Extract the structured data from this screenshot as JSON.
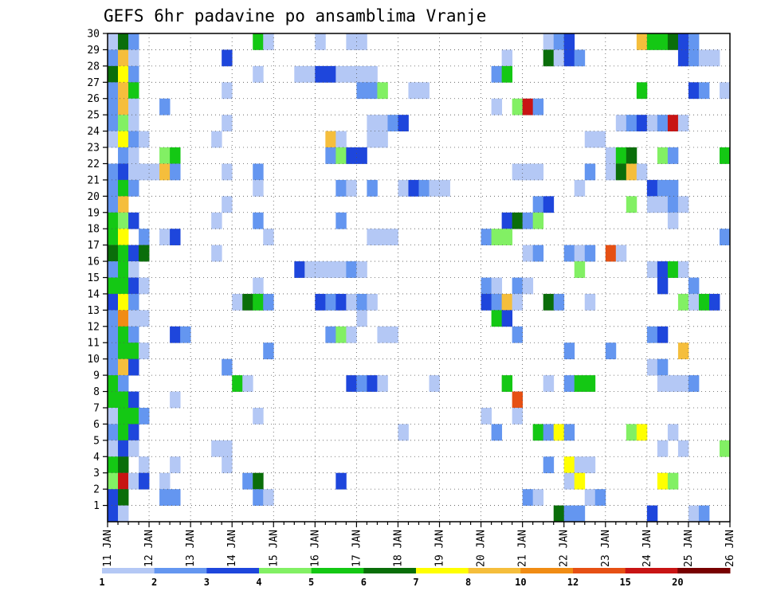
{
  "chart_data": {
    "type": "heatmap",
    "title": "GEFS 6hr padavine po ansamblima Vranje",
    "xlabel": "",
    "ylabel": "",
    "x_tick_labels": [
      "11 JAN",
      "12 JAN",
      "13 JAN",
      "14 JAN",
      "15 JAN",
      "16 JAN",
      "17 JAN",
      "18 JAN",
      "19 JAN",
      "20 JAN",
      "21 JAN",
      "22 JAN",
      "23 JAN",
      "24 JAN",
      "25 JAN",
      "26 JAN"
    ],
    "y_tick_labels": [
      "1",
      "2",
      "3",
      "4",
      "5",
      "6",
      "7",
      "8",
      "9",
      "10",
      "11",
      "12",
      "13",
      "14",
      "15",
      "16",
      "17",
      "18",
      "19",
      "20",
      "21",
      "22",
      "23",
      "24",
      "25",
      "26",
      "27",
      "28",
      "29",
      "30"
    ],
    "x_unit": "6h step from 11 JAN 00Z",
    "xlim": [
      0,
      60
    ],
    "ylim": [
      0,
      30
    ],
    "grid": true,
    "colorbar": {
      "labels": [
        "1",
        "2",
        "3",
        "4",
        "5",
        "6",
        "7",
        "8",
        "10",
        "12",
        "15",
        "20"
      ],
      "colors": [
        "#b4c8f5",
        "#6496f0",
        "#1e46dc",
        "#82f064",
        "#14c814",
        "#0a6e0a",
        "#ffff00",
        "#f5be3c",
        "#f08c14",
        "#e65014",
        "#c81414",
        "#780000"
      ]
    },
    "cells_legend": "each row = [member, step, class]; class 1..12 indexes colorbar.colors",
    "cells": [
      [
        30,
        0,
        1
      ],
      [
        30,
        1,
        6
      ],
      [
        30,
        2,
        2
      ],
      [
        30,
        14,
        5
      ],
      [
        30,
        15,
        1
      ],
      [
        30,
        20,
        1
      ],
      [
        30,
        23,
        1
      ],
      [
        30,
        24,
        1
      ],
      [
        30,
        42,
        1
      ],
      [
        30,
        43,
        2
      ],
      [
        30,
        44,
        3
      ],
      [
        30,
        51,
        8
      ],
      [
        30,
        52,
        5
      ],
      [
        30,
        53,
        5
      ],
      [
        30,
        54,
        6
      ],
      [
        30,
        55,
        3
      ],
      [
        30,
        56,
        2
      ],
      [
        29,
        0,
        2
      ],
      [
        29,
        1,
        8
      ],
      [
        29,
        2,
        1
      ],
      [
        29,
        11,
        3
      ],
      [
        29,
        38,
        1
      ],
      [
        29,
        42,
        6
      ],
      [
        29,
        43,
        1
      ],
      [
        29,
        44,
        3
      ],
      [
        29,
        45,
        2
      ],
      [
        29,
        55,
        3
      ],
      [
        29,
        56,
        2
      ],
      [
        29,
        57,
        1
      ],
      [
        29,
        58,
        1
      ],
      [
        28,
        0,
        6
      ],
      [
        28,
        1,
        7
      ],
      [
        28,
        2,
        2
      ],
      [
        28,
        14,
        1
      ],
      [
        28,
        18,
        1
      ],
      [
        28,
        19,
        1
      ],
      [
        28,
        20,
        3
      ],
      [
        28,
        21,
        3
      ],
      [
        28,
        22,
        1
      ],
      [
        28,
        23,
        1
      ],
      [
        28,
        24,
        1
      ],
      [
        28,
        25,
        1
      ],
      [
        28,
        37,
        2
      ],
      [
        28,
        38,
        5
      ],
      [
        27,
        0,
        2
      ],
      [
        27,
        1,
        8
      ],
      [
        27,
        2,
        5
      ],
      [
        27,
        11,
        1
      ],
      [
        27,
        24,
        2
      ],
      [
        27,
        25,
        2
      ],
      [
        27,
        26,
        4
      ],
      [
        27,
        29,
        1
      ],
      [
        27,
        30,
        1
      ],
      [
        27,
        51,
        5
      ],
      [
        27,
        56,
        3
      ],
      [
        27,
        57,
        2
      ],
      [
        27,
        59,
        1
      ],
      [
        26,
        0,
        2
      ],
      [
        26,
        1,
        8
      ],
      [
        26,
        2,
        1
      ],
      [
        26,
        5,
        2
      ],
      [
        26,
        37,
        1
      ],
      [
        26,
        39,
        4
      ],
      [
        26,
        40,
        11
      ],
      [
        26,
        41,
        2
      ],
      [
        25,
        0,
        2
      ],
      [
        25,
        1,
        4
      ],
      [
        25,
        2,
        1
      ],
      [
        25,
        11,
        1
      ],
      [
        25,
        25,
        1
      ],
      [
        25,
        26,
        1
      ],
      [
        25,
        27,
        2
      ],
      [
        25,
        28,
        3
      ],
      [
        25,
        49,
        1
      ],
      [
        25,
        50,
        2
      ],
      [
        25,
        51,
        3
      ],
      [
        25,
        52,
        1
      ],
      [
        25,
        53,
        2
      ],
      [
        25,
        54,
        11
      ],
      [
        25,
        55,
        1
      ],
      [
        24,
        0,
        1
      ],
      [
        24,
        1,
        7
      ],
      [
        24,
        2,
        2
      ],
      [
        24,
        3,
        1
      ],
      [
        24,
        10,
        1
      ],
      [
        24,
        21,
        8
      ],
      [
        24,
        22,
        1
      ],
      [
        24,
        25,
        1
      ],
      [
        24,
        26,
        1
      ],
      [
        24,
        46,
        1
      ],
      [
        24,
        47,
        1
      ],
      [
        23,
        1,
        2
      ],
      [
        23,
        2,
        1
      ],
      [
        23,
        5,
        4
      ],
      [
        23,
        6,
        5
      ],
      [
        23,
        21,
        2
      ],
      [
        23,
        22,
        4
      ],
      [
        23,
        23,
        3
      ],
      [
        23,
        24,
        3
      ],
      [
        23,
        48,
        1
      ],
      [
        23,
        49,
        5
      ],
      [
        23,
        50,
        6
      ],
      [
        23,
        53,
        4
      ],
      [
        23,
        54,
        2
      ],
      [
        23,
        59,
        5
      ],
      [
        22,
        0,
        2
      ],
      [
        22,
        1,
        3
      ],
      [
        22,
        2,
        1
      ],
      [
        22,
        3,
        1
      ],
      [
        22,
        4,
        1
      ],
      [
        22,
        5,
        8
      ],
      [
        22,
        6,
        2
      ],
      [
        22,
        11,
        1
      ],
      [
        22,
        14,
        2
      ],
      [
        22,
        39,
        1
      ],
      [
        22,
        40,
        1
      ],
      [
        22,
        41,
        1
      ],
      [
        22,
        46,
        2
      ],
      [
        22,
        48,
        1
      ],
      [
        22,
        49,
        6
      ],
      [
        22,
        50,
        8
      ],
      [
        22,
        51,
        1
      ],
      [
        21,
        0,
        2
      ],
      [
        21,
        1,
        5
      ],
      [
        21,
        2,
        2
      ],
      [
        21,
        14,
        1
      ],
      [
        21,
        22,
        2
      ],
      [
        21,
        23,
        1
      ],
      [
        21,
        25,
        2
      ],
      [
        21,
        28,
        1
      ],
      [
        21,
        29,
        3
      ],
      [
        21,
        30,
        2
      ],
      [
        21,
        31,
        1
      ],
      [
        21,
        32,
        1
      ],
      [
        21,
        45,
        1
      ],
      [
        21,
        52,
        3
      ],
      [
        21,
        53,
        2
      ],
      [
        21,
        54,
        2
      ],
      [
        20,
        0,
        2
      ],
      [
        20,
        1,
        8
      ],
      [
        20,
        11,
        1
      ],
      [
        20,
        41,
        2
      ],
      [
        20,
        42,
        3
      ],
      [
        20,
        50,
        4
      ],
      [
        20,
        52,
        1
      ],
      [
        20,
        53,
        1
      ],
      [
        20,
        54,
        2
      ],
      [
        20,
        55,
        1
      ],
      [
        19,
        0,
        5
      ],
      [
        19,
        1,
        4
      ],
      [
        19,
        2,
        3
      ],
      [
        19,
        10,
        1
      ],
      [
        19,
        14,
        2
      ],
      [
        19,
        22,
        2
      ],
      [
        19,
        38,
        3
      ],
      [
        19,
        39,
        6
      ],
      [
        19,
        40,
        2
      ],
      [
        19,
        41,
        4
      ],
      [
        19,
        54,
        1
      ],
      [
        18,
        0,
        5
      ],
      [
        18,
        1,
        7
      ],
      [
        18,
        3,
        2
      ],
      [
        18,
        5,
        1
      ],
      [
        18,
        6,
        3
      ],
      [
        18,
        15,
        1
      ],
      [
        18,
        25,
        1
      ],
      [
        18,
        26,
        1
      ],
      [
        18,
        27,
        1
      ],
      [
        18,
        36,
        2
      ],
      [
        18,
        37,
        4
      ],
      [
        18,
        38,
        4
      ],
      [
        18,
        59,
        2
      ],
      [
        17,
        0,
        6
      ],
      [
        17,
        1,
        5
      ],
      [
        17,
        2,
        3
      ],
      [
        17,
        3,
        6
      ],
      [
        17,
        10,
        1
      ],
      [
        17,
        40,
        1
      ],
      [
        17,
        41,
        2
      ],
      [
        17,
        44,
        2
      ],
      [
        17,
        45,
        1
      ],
      [
        17,
        46,
        2
      ],
      [
        17,
        48,
        10
      ],
      [
        17,
        49,
        1
      ],
      [
        16,
        0,
        2
      ],
      [
        16,
        1,
        5
      ],
      [
        16,
        2,
        1
      ],
      [
        16,
        18,
        3
      ],
      [
        16,
        19,
        1
      ],
      [
        16,
        20,
        1
      ],
      [
        16,
        21,
        1
      ],
      [
        16,
        22,
        1
      ],
      [
        16,
        23,
        2
      ],
      [
        16,
        24,
        1
      ],
      [
        16,
        45,
        4
      ],
      [
        16,
        52,
        1
      ],
      [
        16,
        53,
        3
      ],
      [
        16,
        54,
        5
      ],
      [
        16,
        55,
        1
      ],
      [
        15,
        0,
        5
      ],
      [
        15,
        1,
        5
      ],
      [
        15,
        2,
        3
      ],
      [
        15,
        3,
        1
      ],
      [
        15,
        14,
        1
      ],
      [
        15,
        36,
        2
      ],
      [
        15,
        37,
        1
      ],
      [
        15,
        39,
        2
      ],
      [
        15,
        40,
        1
      ],
      [
        15,
        53,
        3
      ],
      [
        15,
        56,
        2
      ],
      [
        14,
        0,
        3
      ],
      [
        14,
        1,
        7
      ],
      [
        14,
        2,
        2
      ],
      [
        14,
        12,
        1
      ],
      [
        14,
        13,
        6
      ],
      [
        14,
        14,
        5
      ],
      [
        14,
        15,
        2
      ],
      [
        14,
        20,
        3
      ],
      [
        14,
        21,
        2
      ],
      [
        14,
        22,
        3
      ],
      [
        14,
        23,
        1
      ],
      [
        14,
        24,
        2
      ],
      [
        14,
        25,
        1
      ],
      [
        14,
        36,
        3
      ],
      [
        14,
        37,
        2
      ],
      [
        14,
        38,
        8
      ],
      [
        14,
        39,
        1
      ],
      [
        14,
        42,
        6
      ],
      [
        14,
        43,
        2
      ],
      [
        14,
        46,
        1
      ],
      [
        14,
        55,
        4
      ],
      [
        14,
        56,
        1
      ],
      [
        14,
        57,
        5
      ],
      [
        14,
        58,
        3
      ],
      [
        13,
        0,
        2
      ],
      [
        13,
        1,
        9
      ],
      [
        13,
        2,
        1
      ],
      [
        13,
        3,
        1
      ],
      [
        13,
        24,
        1
      ],
      [
        13,
        37,
        5
      ],
      [
        13,
        38,
        3
      ],
      [
        12,
        0,
        2
      ],
      [
        12,
        1,
        5
      ],
      [
        12,
        2,
        2
      ],
      [
        12,
        6,
        3
      ],
      [
        12,
        7,
        2
      ],
      [
        12,
        21,
        2
      ],
      [
        12,
        22,
        4
      ],
      [
        12,
        23,
        1
      ],
      [
        12,
        26,
        1
      ],
      [
        12,
        27,
        1
      ],
      [
        12,
        39,
        2
      ],
      [
        12,
        52,
        2
      ],
      [
        12,
        53,
        3
      ],
      [
        11,
        0,
        2
      ],
      [
        11,
        1,
        5
      ],
      [
        11,
        2,
        5
      ],
      [
        11,
        3,
        1
      ],
      [
        11,
        15,
        2
      ],
      [
        11,
        44,
        2
      ],
      [
        11,
        48,
        2
      ],
      [
        11,
        55,
        8
      ],
      [
        10,
        0,
        2
      ],
      [
        10,
        1,
        8
      ],
      [
        10,
        2,
        3
      ],
      [
        10,
        11,
        2
      ],
      [
        10,
        52,
        1
      ],
      [
        10,
        53,
        2
      ],
      [
        9,
        0,
        5
      ],
      [
        9,
        1,
        2
      ],
      [
        9,
        12,
        5
      ],
      [
        9,
        13,
        1
      ],
      [
        9,
        23,
        3
      ],
      [
        9,
        24,
        2
      ],
      [
        9,
        25,
        3
      ],
      [
        9,
        26,
        1
      ],
      [
        9,
        31,
        1
      ],
      [
        9,
        38,
        5
      ],
      [
        9,
        42,
        1
      ],
      [
        9,
        44,
        2
      ],
      [
        9,
        45,
        5
      ],
      [
        9,
        46,
        5
      ],
      [
        9,
        53,
        1
      ],
      [
        9,
        54,
        1
      ],
      [
        9,
        55,
        1
      ],
      [
        9,
        56,
        2
      ],
      [
        8,
        0,
        5
      ],
      [
        8,
        1,
        5
      ],
      [
        8,
        2,
        3
      ],
      [
        8,
        6,
        1
      ],
      [
        8,
        39,
        10
      ],
      [
        7,
        0,
        1
      ],
      [
        7,
        1,
        5
      ],
      [
        7,
        2,
        5
      ],
      [
        7,
        3,
        2
      ],
      [
        7,
        14,
        1
      ],
      [
        7,
        36,
        1
      ],
      [
        7,
        39,
        1
      ],
      [
        6,
        0,
        2
      ],
      [
        6,
        1,
        5
      ],
      [
        6,
        2,
        3
      ],
      [
        6,
        28,
        1
      ],
      [
        6,
        37,
        2
      ],
      [
        6,
        41,
        5
      ],
      [
        6,
        42,
        2
      ],
      [
        6,
        43,
        7
      ],
      [
        6,
        44,
        2
      ],
      [
        6,
        50,
        4
      ],
      [
        6,
        51,
        7
      ],
      [
        6,
        54,
        1
      ],
      [
        5,
        0,
        1
      ],
      [
        5,
        1,
        3
      ],
      [
        5,
        2,
        1
      ],
      [
        5,
        10,
        1
      ],
      [
        5,
        11,
        1
      ],
      [
        5,
        53,
        1
      ],
      [
        5,
        55,
        1
      ],
      [
        5,
        59,
        4
      ],
      [
        4,
        0,
        5
      ],
      [
        4,
        1,
        6
      ],
      [
        4,
        3,
        1
      ],
      [
        4,
        6,
        1
      ],
      [
        4,
        11,
        1
      ],
      [
        4,
        42,
        2
      ],
      [
        4,
        44,
        7
      ],
      [
        4,
        45,
        1
      ],
      [
        4,
        46,
        1
      ],
      [
        3,
        0,
        4
      ],
      [
        3,
        1,
        11
      ],
      [
        3,
        2,
        1
      ],
      [
        3,
        3,
        3
      ],
      [
        3,
        5,
        1
      ],
      [
        3,
        13,
        2
      ],
      [
        3,
        14,
        6
      ],
      [
        3,
        22,
        3
      ],
      [
        3,
        44,
        1
      ],
      [
        3,
        45,
        7
      ],
      [
        3,
        53,
        7
      ],
      [
        3,
        54,
        4
      ],
      [
        2,
        0,
        3
      ],
      [
        2,
        1,
        6
      ],
      [
        2,
        5,
        2
      ],
      [
        2,
        6,
        2
      ],
      [
        2,
        14,
        2
      ],
      [
        2,
        15,
        1
      ],
      [
        2,
        40,
        2
      ],
      [
        2,
        41,
        1
      ],
      [
        2,
        46,
        1
      ],
      [
        2,
        47,
        2
      ],
      [
        1,
        0,
        3
      ],
      [
        1,
        1,
        1
      ],
      [
        1,
        43,
        6
      ],
      [
        1,
        44,
        2
      ],
      [
        1,
        45,
        2
      ],
      [
        1,
        52,
        3
      ],
      [
        1,
        56,
        1
      ],
      [
        1,
        57,
        2
      ]
    ]
  }
}
